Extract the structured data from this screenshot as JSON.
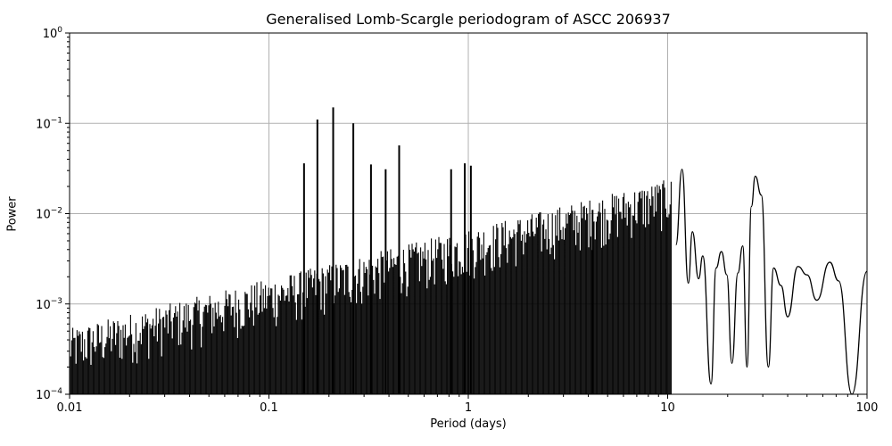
{
  "chart_data": {
    "type": "line",
    "title": "Generalised Lomb-Scargle periodogram of ASCC 206937",
    "xlabel": "Period (days)",
    "ylabel": "Power",
    "xscale": "log",
    "yscale": "log",
    "xlim": [
      0.01,
      100
    ],
    "ylim": [
      0.0001,
      1
    ],
    "grid": true,
    "legend": null,
    "x_ticks": [
      "0.01",
      "0.1",
      "1",
      "10",
      "100"
    ],
    "y_ticks": [
      "10^-4",
      "10^-3",
      "10^-2",
      "10^-1",
      "10^0"
    ],
    "series": [
      {
        "name": "periodogram",
        "color": "#000000",
        "notes": "Dense noise floor between 0.01 and ~10 days (~2e-4 to 1e-3 at short periods, rising toward ~3e-3 near 1 day). The floor cannot be resolved into individual points at this resolution, so it is rendered as an approximate envelope. Peak values below are read approximately off the plot.",
        "peaks": [
          {
            "period": 0.15,
            "power": 0.036
          },
          {
            "period": 0.175,
            "power": 0.11
          },
          {
            "period": 0.21,
            "power": 0.15
          },
          {
            "period": 0.265,
            "power": 0.1
          },
          {
            "period": 0.325,
            "power": 0.035
          },
          {
            "period": 0.385,
            "power": 0.031
          },
          {
            "period": 0.45,
            "power": 0.057
          },
          {
            "period": 0.82,
            "power": 0.031
          },
          {
            "period": 0.96,
            "power": 0.036
          },
          {
            "period": 1.03,
            "power": 0.034
          },
          {
            "period": 4.2,
            "power": 0.011
          }
        ],
        "smooth_tail": [
          {
            "period": 11.0,
            "power": 0.0045
          },
          {
            "period": 11.8,
            "power": 0.031
          },
          {
            "period": 12.7,
            "power": 0.0017
          },
          {
            "period": 13.3,
            "power": 0.0063
          },
          {
            "period": 14.3,
            "power": 0.0019
          },
          {
            "period": 15.0,
            "power": 0.0034
          },
          {
            "period": 16.5,
            "power": 0.00013
          },
          {
            "period": 17.5,
            "power": 0.0025
          },
          {
            "period": 18.6,
            "power": 0.0038
          },
          {
            "period": 19.8,
            "power": 0.0021
          },
          {
            "period": 21.0,
            "power": 0.00022
          },
          {
            "period": 22.5,
            "power": 0.0022
          },
          {
            "period": 23.8,
            "power": 0.0044
          },
          {
            "period": 25.0,
            "power": 0.0002
          },
          {
            "period": 26.3,
            "power": 0.012
          },
          {
            "period": 27.5,
            "power": 0.026
          },
          {
            "period": 29.5,
            "power": 0.016
          },
          {
            "period": 32.0,
            "power": 0.0002
          },
          {
            "period": 34.0,
            "power": 0.0025
          },
          {
            "period": 37.0,
            "power": 0.0016
          },
          {
            "period": 40.0,
            "power": 0.00072
          },
          {
            "period": 45.0,
            "power": 0.0026
          },
          {
            "period": 50.0,
            "power": 0.0021
          },
          {
            "period": 56.0,
            "power": 0.0011
          },
          {
            "period": 65.0,
            "power": 0.0029
          },
          {
            "period": 72.0,
            "power": 0.0018
          },
          {
            "period": 84.0,
            "power": 0.0001
          },
          {
            "period": 100.0,
            "power": 0.0023
          }
        ]
      }
    ]
  }
}
